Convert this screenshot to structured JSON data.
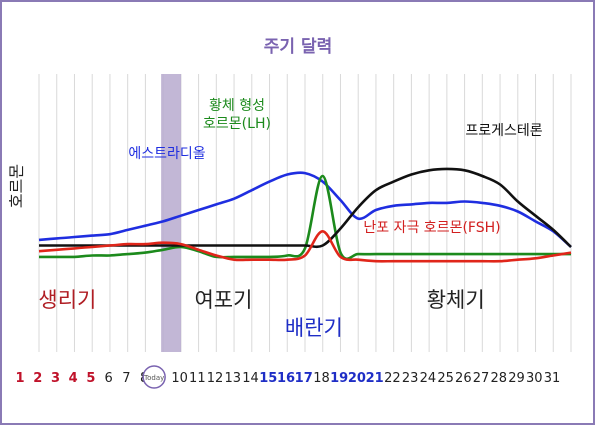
{
  "chart_data": {
    "type": "line",
    "title": "주기 달력",
    "ylabel": "호르몬",
    "today_marker": "Today",
    "today_day": 8,
    "x": [
      1,
      2,
      3,
      4,
      5,
      6,
      7,
      8,
      9,
      10,
      11,
      12,
      13,
      14,
      15,
      16,
      17,
      18,
      19,
      20,
      21,
      22,
      23,
      24,
      25,
      26,
      27,
      28,
      29,
      30,
      31
    ],
    "day_label_colors": [
      "#c0122a",
      "#c0122a",
      "#c0122a",
      "#c0122a",
      "#c0122a",
      "#222222",
      "#222222",
      "#222222",
      "#222222",
      "#222222",
      "#222222",
      "#222222",
      "#222222",
      "#222222",
      "#1f2ec6",
      "#1f2ec6",
      "#1f2ec6",
      "#222222",
      "#1f2ec6",
      "#1f2ec6",
      "#1f2ec6",
      "#222222",
      "#222222",
      "#222222",
      "#222222",
      "#222222",
      "#222222",
      "#222222",
      "#222222",
      "#222222",
      "#222222"
    ],
    "day_label_bold": [
      true,
      true,
      true,
      true,
      true,
      false,
      false,
      false,
      false,
      false,
      false,
      false,
      false,
      false,
      true,
      true,
      true,
      false,
      true,
      true,
      true,
      false,
      false,
      false,
      false,
      false,
      false,
      false,
      false,
      false,
      false
    ],
    "ylim": [
      0,
      100
    ],
    "grid": true,
    "series": [
      {
        "name": "에스트라디올",
        "color": "#1f2ee0",
        "label_color": "#1f2ee0",
        "values": [
          17,
          18,
          19,
          20,
          21,
          24,
          27,
          30,
          34,
          38,
          42,
          46,
          52,
          58,
          63,
          64,
          58,
          45,
          32,
          38,
          41,
          42,
          43,
          43,
          44,
          43,
          41,
          37,
          30,
          23,
          12
        ]
      },
      {
        "name": "황체 형성\n호르몬(LH)",
        "color": "#1c8a1c",
        "label_color": "#1c8a1c",
        "values": [
          5,
          5,
          5,
          6,
          6,
          7,
          8,
          10,
          12,
          9,
          5,
          5,
          5,
          5,
          6,
          11,
          62,
          8,
          7,
          7,
          7,
          7,
          7,
          7,
          7,
          7,
          7,
          7,
          7,
          7,
          7
        ]
      },
      {
        "name": "프로게스테론",
        "color": "#111111",
        "label_color": "#111111",
        "values": [
          13,
          13,
          13,
          13,
          13,
          13,
          13,
          13,
          13,
          13,
          13,
          13,
          13,
          13,
          13,
          13,
          13,
          25,
          40,
          52,
          58,
          63,
          66,
          67,
          66,
          62,
          56,
          44,
          34,
          24,
          12
        ]
      },
      {
        "name": "난포 자극 호르몬(FSH)",
        "color": "#e0261a",
        "label_color": "#d21f1f",
        "values": [
          9,
          10,
          11,
          12,
          13,
          14,
          14,
          15,
          14,
          10,
          6,
          3,
          3,
          3,
          3,
          6,
          23,
          5,
          3,
          2,
          2,
          2,
          2,
          2,
          2,
          2,
          2,
          3,
          4,
          6,
          8
        ]
      }
    ],
    "phases": [
      {
        "name": "생리기",
        "color": "#b01e24",
        "at_day": 2.6,
        "row": 1
      },
      {
        "name": "여포기",
        "color": "#222222",
        "at_day": 11.4,
        "row": 1
      },
      {
        "name": "배란기",
        "color": "#1f2ec6",
        "at_day": 16.5,
        "row": 2
      },
      {
        "name": "황체기",
        "color": "#222222",
        "at_day": 24.5,
        "row": 1
      }
    ]
  }
}
